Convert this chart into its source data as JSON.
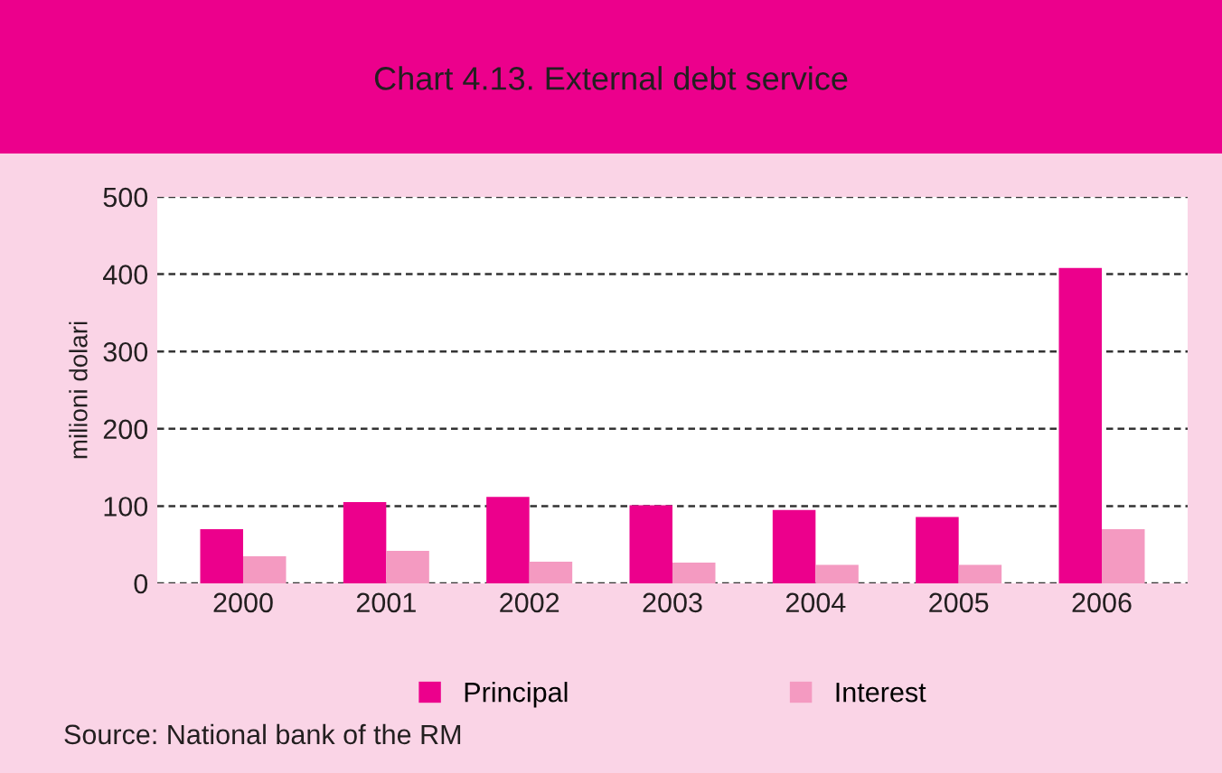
{
  "chart_data": {
    "type": "bar",
    "title": "Chart 4.13. External debt service",
    "ylabel": "milioni dolari",
    "categories": [
      "2000",
      "2001",
      "2002",
      "2003",
      "2004",
      "2005",
      "2006"
    ],
    "series": [
      {
        "name": "Principal",
        "color": "#ec008c",
        "values": [
          70,
          105,
          112,
          101,
          95,
          86,
          408
        ]
      },
      {
        "name": "Interest",
        "color": "#f49ac1",
        "values": [
          35,
          42,
          28,
          27,
          24,
          24,
          70
        ]
      }
    ],
    "ylim": [
      0,
      500
    ],
    "yticks": [
      0,
      100,
      200,
      300,
      400,
      500
    ],
    "grid": "y",
    "legend": "bottom",
    "annotations": [
      "Source: National bank of the RM"
    ]
  }
}
